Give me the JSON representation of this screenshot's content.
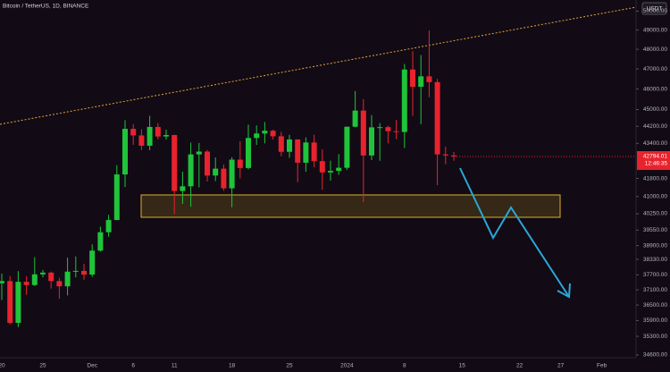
{
  "chart_data": {
    "type": "candlestick",
    "title": "Bitcoin / TetherUS, 1D, BINANCE",
    "currency_button": "USDT",
    "countdown": "12:46:35",
    "log_scale": true,
    "up_color": "#1fc43a",
    "down_color": "#e8232e",
    "categories": [
      "20",
      null,
      null,
      null,
      null,
      "25",
      null,
      null,
      null,
      null,
      null,
      "Dec",
      null,
      null,
      null,
      null,
      "6",
      null,
      null,
      null,
      null,
      "11",
      null,
      null,
      null,
      null,
      null,
      null,
      "18",
      null,
      null,
      null,
      null,
      null,
      null,
      "25",
      null,
      null,
      null,
      null,
      null,
      null,
      "2024",
      null,
      null,
      null,
      null,
      null,
      null,
      "8",
      null,
      null,
      null,
      null,
      null,
      null,
      "15",
      null,
      null,
      null,
      null,
      null,
      null,
      "22",
      null,
      null,
      null,
      null,
      "27",
      null,
      null,
      null,
      null,
      "Feb",
      null,
      null,
      null
    ],
    "open": [
      37360,
      37450,
      35810,
      37420,
      37290,
      37720,
      37790,
      37450,
      37240,
      37830,
      37860,
      37710,
      38690,
      39460,
      39980,
      41980,
      44080,
      43770,
      43290,
      44170,
      43720,
      43790,
      41240,
      41450,
      42890,
      43020,
      41930,
      42240,
      41360,
      42650,
      42270,
      43650,
      43860,
      43990,
      43730,
      43010,
      43580,
      42510,
      43440,
      42580,
      42070,
      42140,
      42280,
      44180,
      44950,
      42840,
      44150,
      44160,
      43970,
      43930,
      46970,
      46110,
      46630,
      46340,
      42890,
      42840,
      null,
      null,
      null,
      null,
      null,
      null,
      null,
      null,
      null,
      null,
      null,
      null,
      null,
      null,
      null,
      null,
      null,
      null,
      null,
      null,
      null
    ],
    "high": [
      37750,
      37650,
      37850,
      37640,
      38420,
      37900,
      37830,
      37580,
      38400,
      38450,
      38150,
      38950,
      39700,
      40200,
      42400,
      44490,
      44300,
      44050,
      44700,
      44360,
      44040,
      43800,
      42100,
      43430,
      43420,
      43090,
      42750,
      42430,
      42760,
      43500,
      44280,
      44240,
      44400,
      44040,
      43940,
      43800,
      43600,
      43680,
      43800,
      43120,
      42600,
      42900,
      44180,
      45900,
      45500,
      44730,
      44350,
      44230,
      44500,
      47250,
      47900,
      47700,
      48970,
      46500,
      43250,
      43000,
      null,
      null,
      null,
      null,
      null,
      null,
      null,
      null,
      null,
      null,
      null,
      null,
      null,
      null,
      null,
      null,
      null,
      null,
      null,
      null,
      null
    ],
    "low": [
      36700,
      35750,
      35650,
      36900,
      37250,
      37600,
      37150,
      36750,
      36880,
      37600,
      37500,
      37620,
      38650,
      39270,
      39980,
      41420,
      43330,
      43090,
      43080,
      43580,
      43580,
      40220,
      40680,
      40550,
      41400,
      41660,
      41680,
      41250,
      40530,
      41800,
      42210,
      43330,
      43400,
      43580,
      42800,
      42730,
      41630,
      42100,
      42300,
      41300,
      41700,
      41960,
      42180,
      44150,
      40750,
      42630,
      42600,
      43400,
      43600,
      43190,
      44700,
      44300,
      45600,
      41500,
      42440,
      42600,
      null,
      null,
      null,
      null,
      null,
      null,
      null,
      null,
      null,
      null,
      null,
      null,
      null,
      null,
      null,
      null,
      null,
      null,
      null,
      null,
      null
    ],
    "close": [
      37450,
      35810,
      37420,
      37290,
      37720,
      37790,
      37450,
      37240,
      37830,
      37860,
      37710,
      38690,
      39460,
      39980,
      41980,
      44080,
      43770,
      43290,
      44170,
      43720,
      43790,
      41240,
      41450,
      42890,
      43020,
      41930,
      42240,
      41360,
      42650,
      42270,
      43650,
      43860,
      43990,
      43730,
      43010,
      43580,
      42510,
      43440,
      42580,
      42070,
      42140,
      42280,
      44180,
      44950,
      42840,
      44150,
      44160,
      43970,
      43930,
      46970,
      46110,
      46630,
      46340,
      42890,
      42840,
      42794.01,
      null,
      null,
      null,
      null,
      null,
      null,
      null,
      null,
      null,
      null,
      null,
      null,
      null,
      null,
      null,
      null,
      null,
      null,
      null,
      null,
      null
    ],
    "ylim": [
      34500,
      50600
    ],
    "yticks": [
      {
        "value": 50000,
        "label": "50000.00"
      },
      {
        "value": 49000,
        "label": "49000.00"
      },
      {
        "value": 48000,
        "label": "48000.00"
      },
      {
        "value": 47000,
        "label": "47000.00"
      },
      {
        "value": 46000,
        "label": "46000.00"
      },
      {
        "value": 45000,
        "label": "45000.00"
      },
      {
        "value": 44200,
        "label": "44200.00"
      },
      {
        "value": 43400,
        "label": "43400.00"
      },
      {
        "value": 41800,
        "label": "41800.00"
      },
      {
        "value": 41000,
        "label": "41000.00"
      },
      {
        "value": 40250,
        "label": "40250.00"
      },
      {
        "value": 39550,
        "label": "39550.00"
      },
      {
        "value": 38900,
        "label": "38900.00"
      },
      {
        "value": 38330,
        "label": "38330.00"
      },
      {
        "value": 37700,
        "label": "37700.00"
      },
      {
        "value": 37100,
        "label": "37100.00"
      },
      {
        "value": 36500,
        "label": "36500.00"
      },
      {
        "value": 35900,
        "label": "35900.00"
      },
      {
        "value": 35300,
        "label": "35300.00"
      },
      {
        "value": 34600,
        "label": "34600.00"
      }
    ]
  }
}
